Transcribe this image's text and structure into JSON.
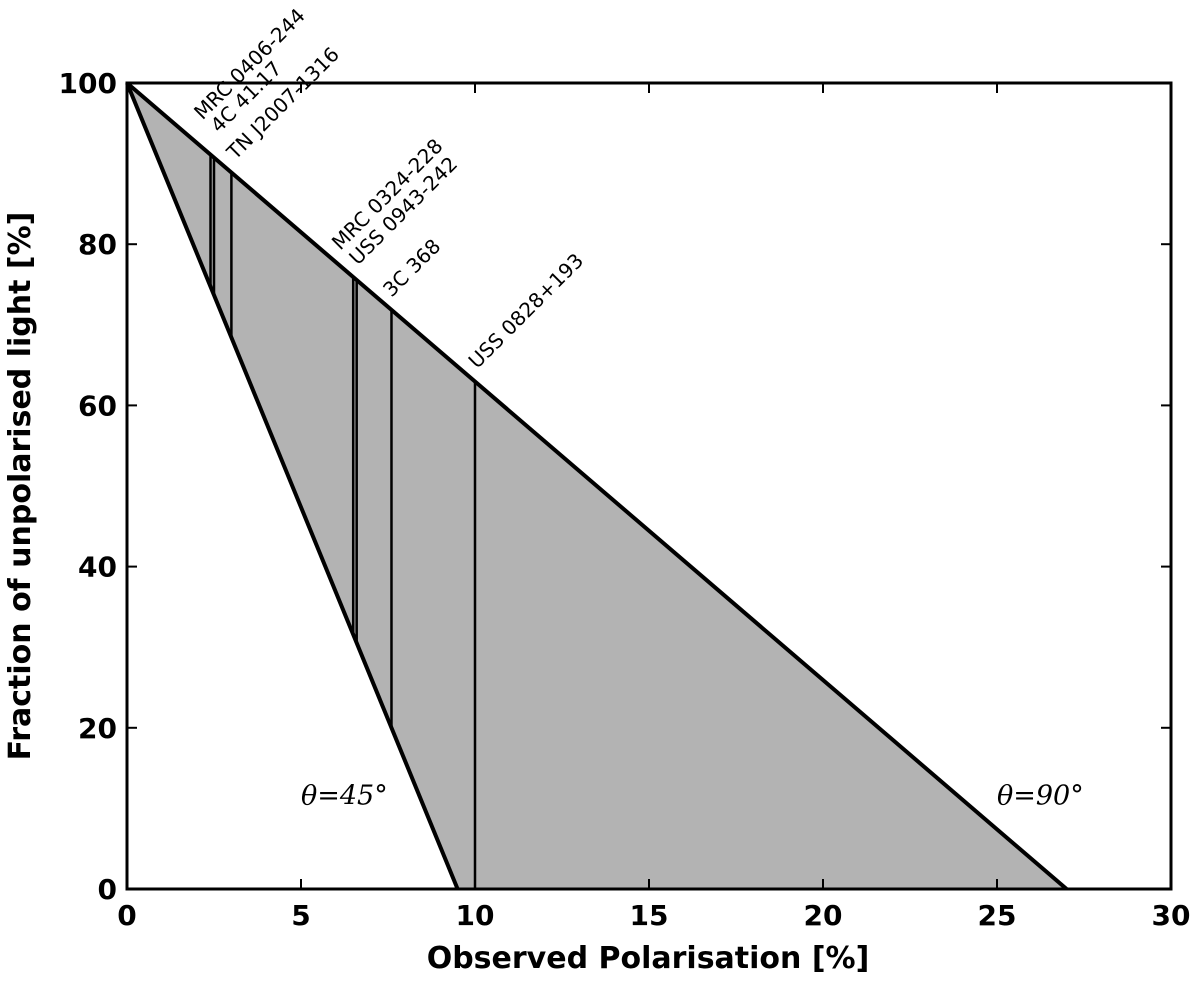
{
  "chart_data": {
    "type": "area",
    "xlabel": "Observed Polarisation [%]",
    "ylabel": "Fraction of unpolarised light [%]",
    "xlim": [
      0,
      30
    ],
    "ylim": [
      0,
      100
    ],
    "xticks": [
      0,
      5,
      10,
      15,
      20,
      25,
      30
    ],
    "xtick_labels": [
      "0",
      "5",
      "10",
      "15",
      "20",
      "25",
      "30"
    ],
    "yticks": [
      0,
      20,
      40,
      60,
      80,
      100
    ],
    "ytick_labels": [
      "0",
      "20",
      "40",
      "60",
      "80",
      "100"
    ],
    "grid": false,
    "fill_color": "#b3b3b3",
    "line_color": "#000000",
    "boundary_lines": [
      {
        "label": "θ=45°",
        "points": [
          [
            0,
            100
          ],
          [
            9.5,
            0
          ]
        ]
      },
      {
        "label": "θ=90°",
        "points": [
          [
            0,
            100
          ],
          [
            27,
            0
          ]
        ]
      }
    ],
    "annotations": [
      {
        "text": "θ=45°",
        "x": 5.0,
        "y": 10.5
      },
      {
        "text": "θ=90°",
        "x": 25.0,
        "y": 10.5
      }
    ],
    "sources": [
      {
        "name": "MRC 0406-244",
        "x": 2.4
      },
      {
        "name": "4C 41.17",
        "x": 2.5
      },
      {
        "name": "TN J2007-1316",
        "x": 3.0
      },
      {
        "name": "MRC 0324-228",
        "x": 6.5
      },
      {
        "name": "USS 0943-242",
        "x": 6.6
      },
      {
        "name": "3C 368",
        "x": 7.6
      },
      {
        "name": "USS 0828+193",
        "x": 10.0
      }
    ]
  }
}
